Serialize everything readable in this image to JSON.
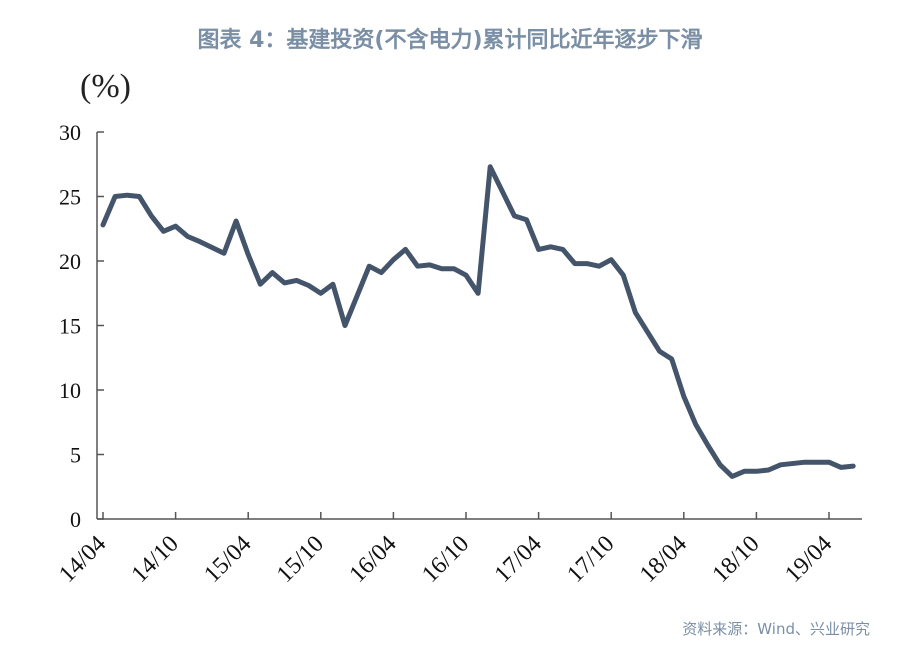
{
  "title": "图表 4：基建投资(不含电力)累计同比近年逐步下滑",
  "source": "资料来源：Wind、兴业研究",
  "chart_data": {
    "type": "line",
    "ylabel": "(%)",
    "xlabel": "",
    "ylim": [
      0,
      30
    ],
    "yticks": [
      0,
      5,
      10,
      15,
      20,
      25,
      30
    ],
    "xticks": [
      "14/04",
      "14/10",
      "15/04",
      "15/10",
      "16/04",
      "16/10",
      "17/04",
      "17/10",
      "18/04",
      "18/10",
      "19/04"
    ],
    "grid": false,
    "line_color": "#44546a",
    "series": [
      {
        "x": [
          "14/04",
          "14/05",
          "14/06",
          "14/07",
          "14/08",
          "14/09",
          "14/10",
          "14/11",
          "14/12",
          "15/02",
          "15/03",
          "15/04",
          "15/05",
          "15/06",
          "15/07",
          "15/08",
          "15/09",
          "15/10",
          "15/11",
          "15/12",
          "16/02",
          "16/03",
          "16/04",
          "16/05",
          "16/06",
          "16/07",
          "16/08",
          "16/09",
          "16/10",
          "16/11",
          "16/12",
          "17/02",
          "17/03",
          "17/04",
          "17/05",
          "17/06",
          "17/07",
          "17/08",
          "17/09",
          "17/10",
          "17/11",
          "17/12",
          "18/02",
          "18/03",
          "18/04",
          "18/05",
          "18/06",
          "18/07",
          "18/08",
          "18/09",
          "18/10",
          "18/11",
          "18/12",
          "19/02",
          "19/03",
          "19/04",
          "19/05",
          "19/06"
        ],
        "values": [
          22.8,
          25.0,
          25.1,
          25.0,
          23.5,
          22.3,
          22.7,
          21.9,
          21.5,
          20.6,
          23.1,
          20.5,
          18.2,
          19.1,
          18.3,
          18.5,
          18.1,
          17.5,
          18.2,
          15.0,
          19.6,
          19.1,
          20.1,
          20.9,
          19.6,
          19.7,
          19.4,
          19.4,
          18.9,
          17.5,
          27.3,
          23.5,
          23.2,
          20.9,
          21.1,
          20.9,
          19.8,
          19.8,
          19.6,
          20.1,
          18.9,
          16.0,
          13.0,
          12.4,
          9.5,
          7.3,
          5.7,
          4.2,
          3.3,
          3.7,
          3.7,
          3.8,
          4.2,
          4.4,
          4.4,
          4.4,
          4.0,
          4.1
        ]
      }
    ]
  }
}
